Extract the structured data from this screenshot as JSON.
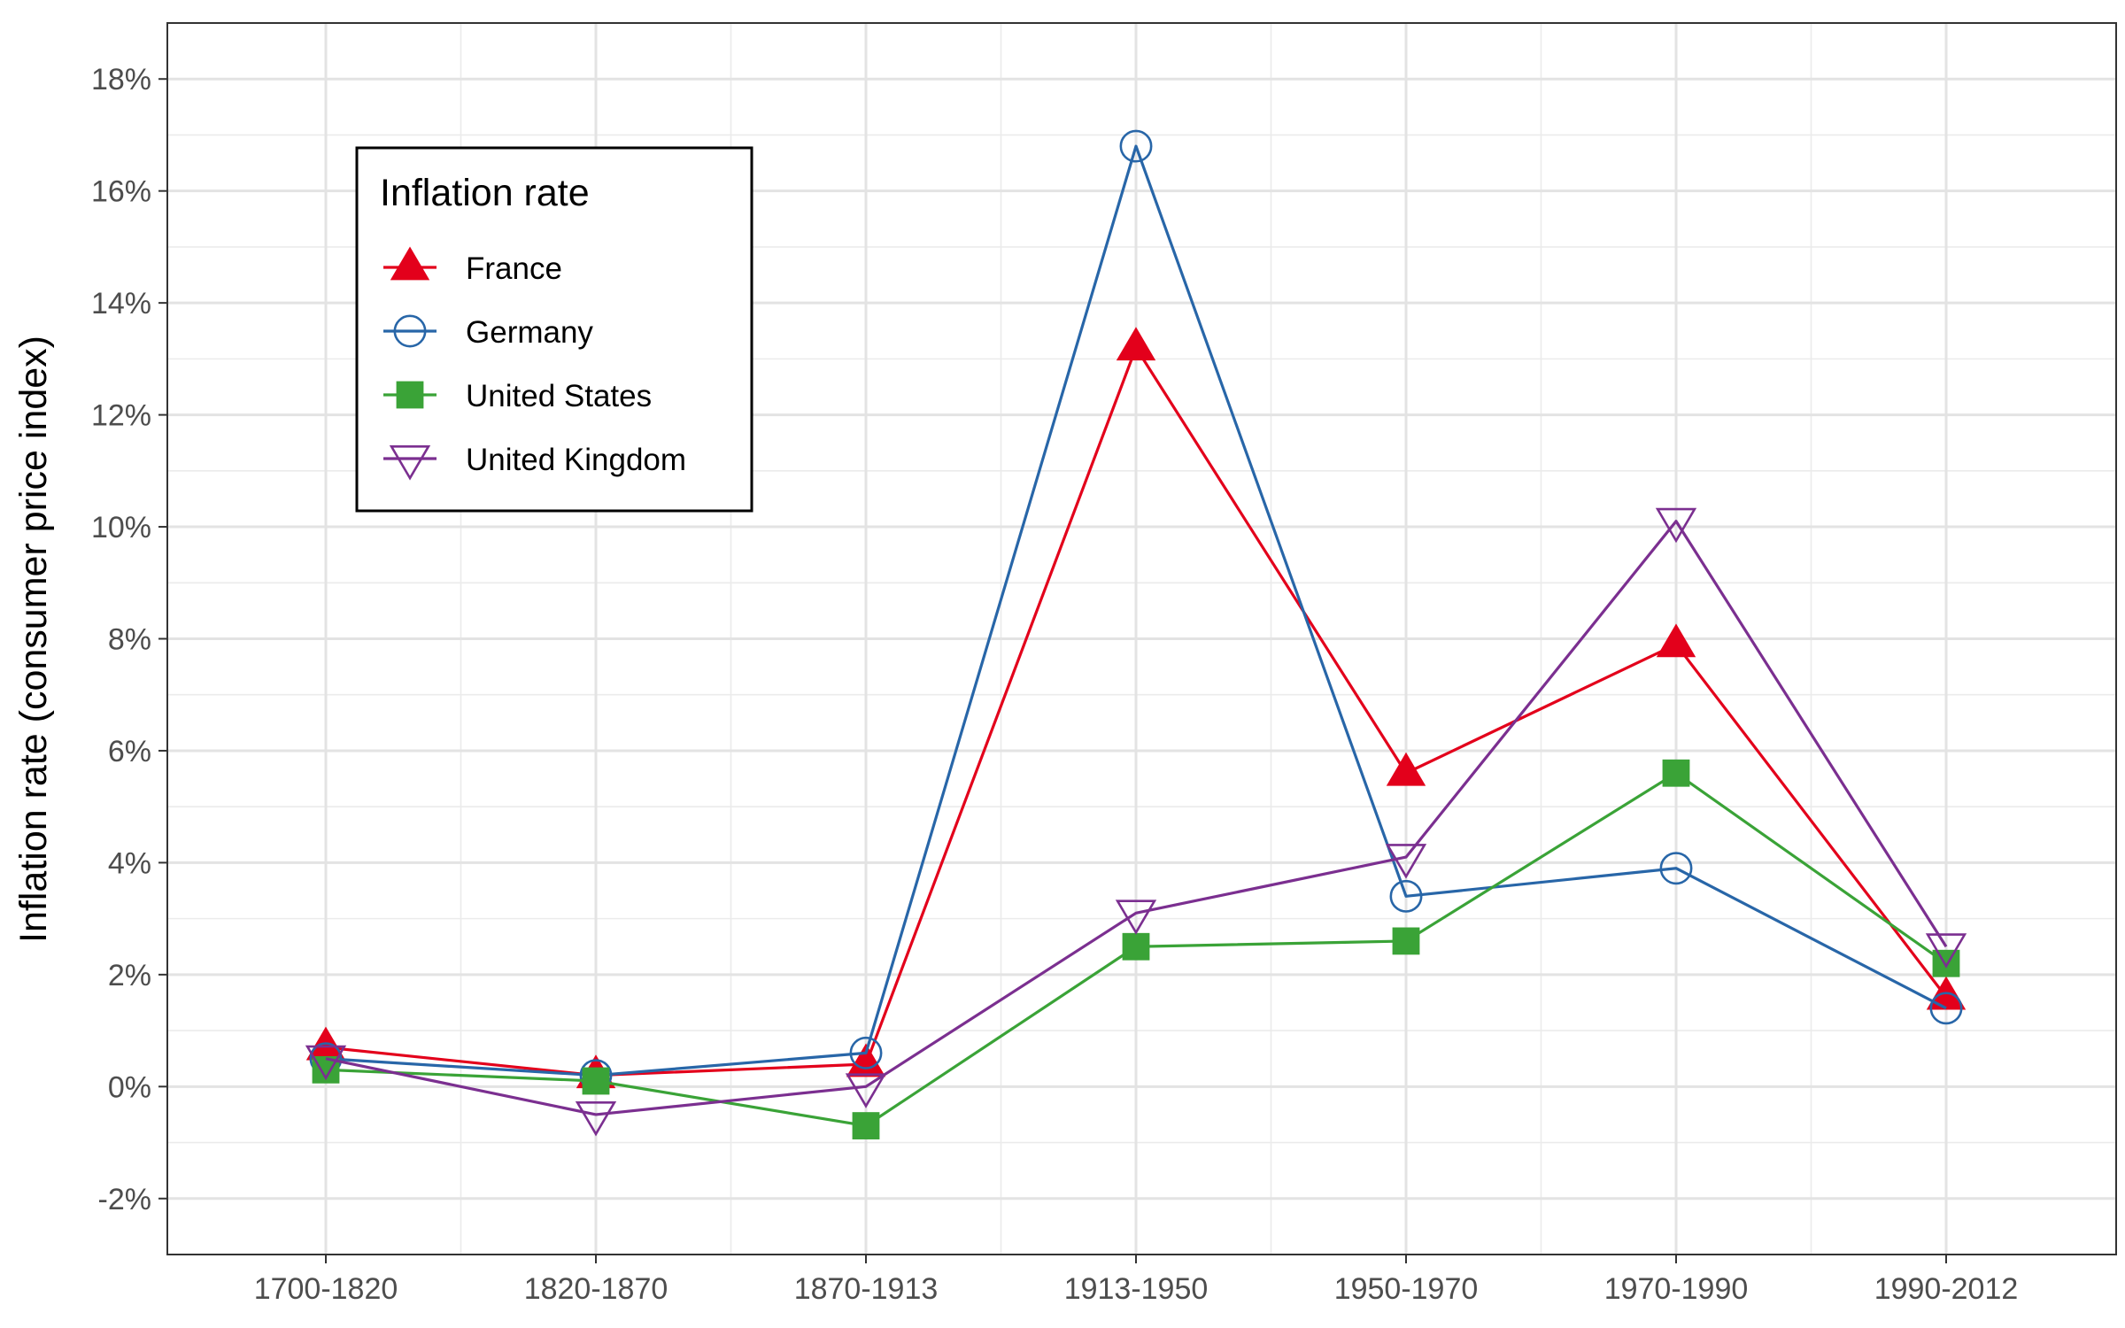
{
  "chart_data": {
    "type": "line",
    "title": "",
    "xlabel": "",
    "ylabel": "Inflation rate (consumer price index)",
    "categories": [
      "1700-1820",
      "1820-1870",
      "1870-1913",
      "1913-1950",
      "1950-1970",
      "1970-1990",
      "1990-2012"
    ],
    "ylim": [
      -3,
      19
    ],
    "yticks": [
      -2,
      0,
      2,
      4,
      6,
      8,
      10,
      12,
      14,
      16,
      18
    ],
    "ytick_labels": [
      "-2%",
      "0%",
      "2%",
      "4%",
      "6%",
      "8%",
      "10%",
      "12%",
      "14%",
      "16%",
      "18%"
    ],
    "grid": true,
    "legend": {
      "title": "Inflation rate",
      "position": "top-left"
    },
    "series": [
      {
        "name": "France",
        "color": "#e3001b",
        "marker": "triangle-filled",
        "values": [
          0.7,
          0.2,
          0.4,
          13.2,
          5.6,
          7.9,
          1.6
        ]
      },
      {
        "name": "Germany",
        "color": "#2866a8",
        "marker": "circle-open",
        "values": [
          0.5,
          0.2,
          0.6,
          16.8,
          3.4,
          3.9,
          1.4
        ]
      },
      {
        "name": "United States",
        "color": "#3aa337",
        "marker": "square-filled",
        "values": [
          0.3,
          0.1,
          -0.7,
          2.5,
          2.6,
          5.6,
          2.2
        ]
      },
      {
        "name": "United Kingdom",
        "color": "#7b2f90",
        "marker": "triangle-down-open",
        "values": [
          0.5,
          -0.5,
          0.0,
          3.1,
          4.1,
          10.1,
          2.5
        ]
      }
    ]
  }
}
